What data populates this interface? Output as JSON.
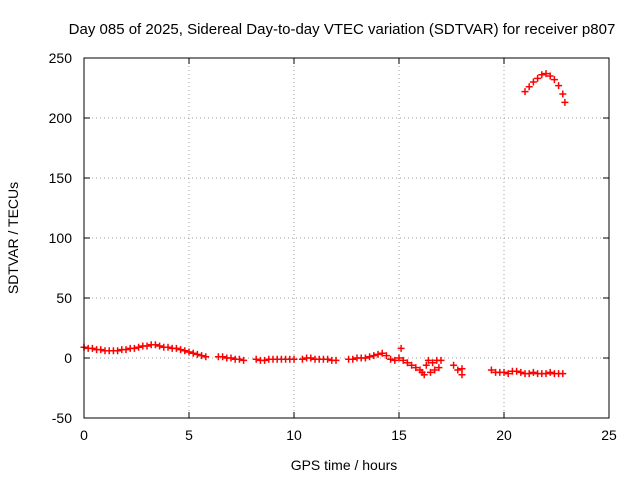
{
  "chart_data": {
    "type": "scatter",
    "title": "Day 085 of 2025, Sidereal Day-to-day VTEC variation (SDTVAR) for receiver p807",
    "xlabel": "GPS time / hours",
    "ylabel": "SDTVAR / TECUs",
    "xlim": [
      0,
      25
    ],
    "ylim": [
      -50,
      250
    ],
    "xticks": [
      0,
      5,
      10,
      15,
      20,
      25
    ],
    "yticks": [
      -50,
      0,
      50,
      100,
      150,
      200,
      250
    ],
    "grid": true,
    "marker": "+",
    "color": "#ff0000",
    "series": [
      {
        "name": "SDTVAR",
        "points": [
          [
            0.0,
            9
          ],
          [
            0.2,
            8
          ],
          [
            0.4,
            8
          ],
          [
            0.6,
            7
          ],
          [
            0.8,
            7
          ],
          [
            1.0,
            6
          ],
          [
            1.2,
            6
          ],
          [
            1.4,
            6
          ],
          [
            1.6,
            6
          ],
          [
            1.8,
            7
          ],
          [
            2.0,
            7
          ],
          [
            2.2,
            8
          ],
          [
            2.4,
            8
          ],
          [
            2.6,
            9
          ],
          [
            2.8,
            10
          ],
          [
            3.0,
            10
          ],
          [
            3.2,
            11
          ],
          [
            3.4,
            11
          ],
          [
            3.6,
            10
          ],
          [
            3.8,
            9
          ],
          [
            4.0,
            9
          ],
          [
            4.2,
            8
          ],
          [
            4.4,
            8
          ],
          [
            4.6,
            7
          ],
          [
            4.8,
            6
          ],
          [
            5.0,
            5
          ],
          [
            5.2,
            4
          ],
          [
            5.4,
            3
          ],
          [
            5.6,
            2
          ],
          [
            5.8,
            1
          ],
          [
            6.4,
            1
          ],
          [
            6.6,
            1
          ],
          [
            6.8,
            0
          ],
          [
            7.0,
            0
          ],
          [
            7.2,
            -1
          ],
          [
            7.4,
            -1
          ],
          [
            7.6,
            -2
          ],
          [
            8.2,
            -1
          ],
          [
            8.4,
            -2
          ],
          [
            8.6,
            -2
          ],
          [
            8.8,
            -1
          ],
          [
            9.0,
            -1
          ],
          [
            9.2,
            -1
          ],
          [
            9.4,
            -1
          ],
          [
            9.6,
            -1
          ],
          [
            9.8,
            -1
          ],
          [
            10.0,
            -1
          ],
          [
            10.4,
            -1
          ],
          [
            10.6,
            0
          ],
          [
            10.8,
            0
          ],
          [
            11.0,
            -1
          ],
          [
            11.2,
            -1
          ],
          [
            11.4,
            -1
          ],
          [
            11.6,
            -1
          ],
          [
            11.8,
            -2
          ],
          [
            12.0,
            -2
          ],
          [
            12.6,
            -1
          ],
          [
            12.8,
            -1
          ],
          [
            13.0,
            0
          ],
          [
            13.2,
            0
          ],
          [
            13.4,
            0
          ],
          [
            13.6,
            1
          ],
          [
            13.8,
            2
          ],
          [
            14.0,
            3
          ],
          [
            14.2,
            4
          ],
          [
            14.4,
            2
          ],
          [
            14.6,
            -1
          ],
          [
            14.8,
            -2
          ],
          [
            15.0,
            0
          ],
          [
            15.1,
            8
          ],
          [
            15.2,
            -2
          ],
          [
            15.4,
            -4
          ],
          [
            15.6,
            -6
          ],
          [
            15.8,
            -8
          ],
          [
            16.0,
            -10
          ],
          [
            16.1,
            -12
          ],
          [
            16.2,
            -14
          ],
          [
            16.3,
            -6
          ],
          [
            16.4,
            -2
          ],
          [
            16.5,
            -12
          ],
          [
            16.6,
            -4
          ],
          [
            16.7,
            -10
          ],
          [
            16.8,
            -2
          ],
          [
            16.9,
            -8
          ],
          [
            17.0,
            -2
          ],
          [
            17.6,
            -6
          ],
          [
            17.8,
            -10
          ],
          [
            18.0,
            -9
          ],
          [
            18.0,
            -14
          ],
          [
            19.4,
            -10
          ],
          [
            19.6,
            -12
          ],
          [
            19.8,
            -12
          ],
          [
            20.0,
            -12
          ],
          [
            20.2,
            -13
          ],
          [
            20.4,
            -11
          ],
          [
            20.6,
            -11
          ],
          [
            20.8,
            -12
          ],
          [
            21.0,
            -13
          ],
          [
            21.2,
            -13
          ],
          [
            21.4,
            -12
          ],
          [
            21.6,
            -13
          ],
          [
            21.8,
            -13
          ],
          [
            22.0,
            -13
          ],
          [
            22.2,
            -12
          ],
          [
            22.4,
            -13
          ],
          [
            22.6,
            -13
          ],
          [
            22.8,
            -13
          ],
          [
            21.0,
            222
          ],
          [
            21.2,
            226
          ],
          [
            21.4,
            230
          ],
          [
            21.6,
            233
          ],
          [
            21.8,
            236
          ],
          [
            22.0,
            237
          ],
          [
            22.2,
            235
          ],
          [
            22.4,
            232
          ],
          [
            22.6,
            227
          ],
          [
            22.8,
            220
          ],
          [
            22.9,
            213
          ]
        ]
      }
    ]
  }
}
